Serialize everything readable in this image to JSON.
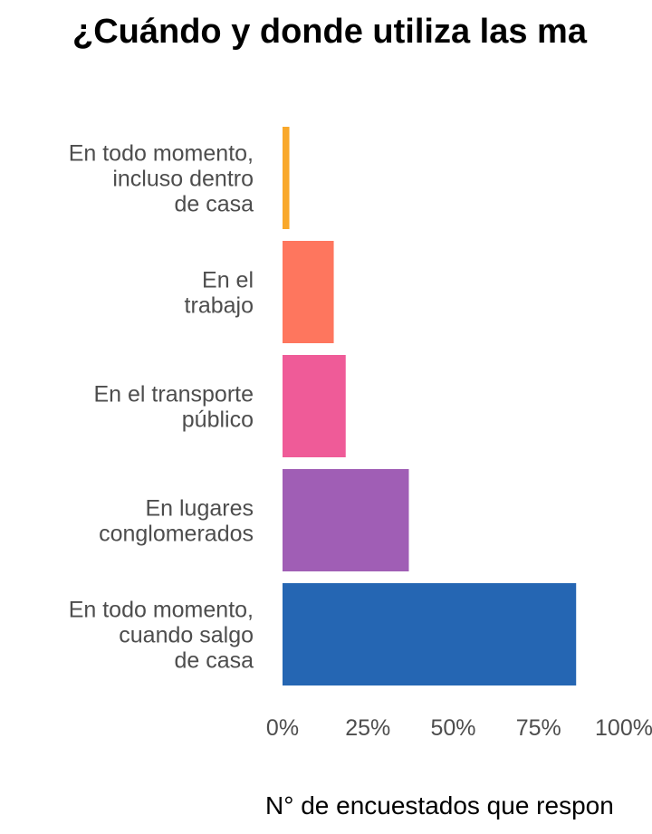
{
  "chart_data": {
    "type": "bar",
    "orientation": "horizontal",
    "title": "¿Cuándo y donde utiliza las ma",
    "xlabel": "N° de encuestados que respon",
    "ylabel": "",
    "xlim": [
      0,
      100
    ],
    "x_ticks": [
      "0%",
      "25%",
      "50%",
      "75%",
      "100%"
    ],
    "x_tick_values": [
      0,
      25,
      50,
      75,
      100
    ],
    "grid": false,
    "legend": "none",
    "categories": [
      [
        "En todo momento,",
        "incluso dentro",
        "de casa"
      ],
      [
        "En el",
        "trabajo"
      ],
      [
        "En el transporte",
        "público"
      ],
      [
        "En lugares",
        "conglomerados"
      ],
      [
        "En todo momento,",
        "cuando salgo",
        "de casa"
      ]
    ],
    "values": [
      2,
      15,
      18.5,
      37,
      86
    ],
    "colors": [
      "#f9a82b",
      "#fe765e",
      "#ef5b98",
      "#a05eb5",
      "#2566b3"
    ]
  }
}
